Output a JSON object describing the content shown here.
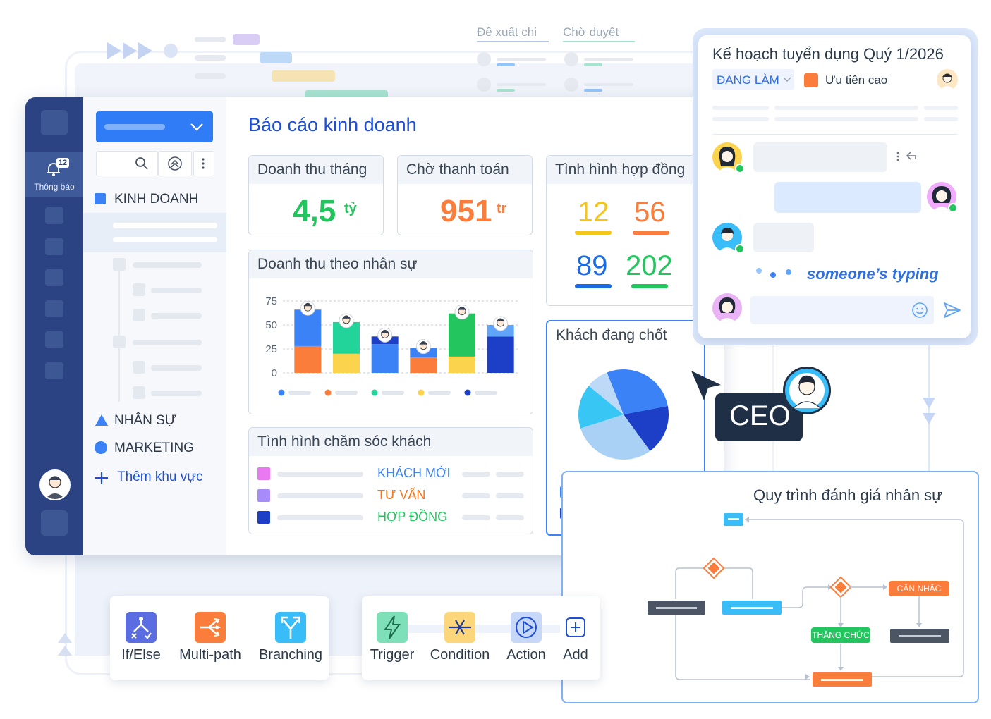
{
  "main": {
    "title": "Báo cáo kinh doanh",
    "kpis": {
      "revenue_month": {
        "label": "Doanh thu tháng",
        "value": "4,5",
        "unit": "tỷ"
      },
      "pending_payment": {
        "label": "Chờ thanh toán",
        "value": "951",
        "unit": "tr"
      },
      "contracts": {
        "label": "Tình hình hợp đồng",
        "values": [
          "12",
          "56",
          "89",
          "202"
        ]
      }
    },
    "revenue_by_staff": {
      "label": "Doanh thu theo nhân sự"
    },
    "customer_care": {
      "label": "Tình hình chăm sóc khách",
      "rows": [
        {
          "label": "KHÁCH MỚI",
          "swatch": "#e879f0",
          "text_color": "#3b82f6"
        },
        {
          "label": "TƯ VẤN",
          "swatch": "#a78bfa",
          "text_color": "#f97316"
        },
        {
          "label": "HỢP ĐỒNG",
          "swatch": "#1d3fc7",
          "text_color": "#22c55e"
        }
      ]
    },
    "closing_customers": {
      "label": "Khách đang chốt"
    }
  },
  "sidebar": {
    "notifications": {
      "label": "Thông báo",
      "badge": "12"
    },
    "sections": [
      {
        "label": "KINH DOANH",
        "color": "#3b82f6",
        "shape": "square"
      },
      {
        "label": "NHÂN SỰ",
        "color": "#3b82f6",
        "shape": "triangle"
      },
      {
        "label": "MARKETING",
        "color": "#3b82f6",
        "shape": "circle"
      }
    ],
    "add_area": "Thêm khu vực"
  },
  "top_tabs": [
    "Đề xuất chi",
    "Chờ duyệt"
  ],
  "task": {
    "title": "Kế hoạch tuyển dụng Quý 1/2026",
    "status": "ĐANG LÀM",
    "priority": "Ưu tiên cao",
    "typing": "someone’s typing"
  },
  "ceo_label": "CEO",
  "workflow": {
    "title": "Quy trình đánh giá nhân sự",
    "nodes": {
      "consider": "CÂN NHẮC",
      "promote": "THĂNG CHỨC"
    }
  },
  "toolbar_left": [
    {
      "label": "If/Else",
      "icon": "if-else-icon",
      "color": "#5b6ee1"
    },
    {
      "label": "Multi-path",
      "icon": "multi-path-icon",
      "color": "#fb7d3c"
    },
    {
      "label": "Branching",
      "icon": "branching-icon",
      "color": "#38bdf8"
    }
  ],
  "toolbar_right": [
    {
      "label": "Trigger",
      "icon": "lightning-icon",
      "color": "#7ee0b8"
    },
    {
      "label": "Condition",
      "icon": "condition-icon",
      "color": "#fcd67a"
    },
    {
      "label": "Action",
      "icon": "play-icon",
      "color": "#c7d7f7"
    },
    {
      "label": "Add",
      "icon": "plus-icon",
      "color": "#ffffff"
    }
  ],
  "chart_data": {
    "type": "bar",
    "stacked": true,
    "categories": [
      "",
      "",
      "",
      "",
      "",
      ""
    ],
    "ylim": [
      0,
      75
    ],
    "yticks": [
      0,
      25,
      50,
      75
    ],
    "series": [
      {
        "values": [
          28,
          0,
          0,
          16,
          0,
          0
        ],
        "color": "#fb7d3c"
      },
      {
        "values": [
          0,
          20,
          0,
          0,
          17,
          0
        ],
        "color": "#fcd34d"
      },
      {
        "values": [
          0,
          33,
          0,
          0,
          0,
          0
        ],
        "color": "#22d39a"
      },
      {
        "values": [
          38,
          0,
          30,
          10,
          0,
          0
        ],
        "color": "#3b82f6"
      },
      {
        "values": [
          0,
          0,
          8,
          0,
          0,
          38
        ],
        "color": "#1d3fc7"
      },
      {
        "values": [
          0,
          0,
          0,
          0,
          45,
          0
        ],
        "color": "#22c55e"
      },
      {
        "values": [
          0,
          0,
          0,
          0,
          0,
          12
        ],
        "color": "#60a5fa"
      }
    ],
    "grid": true
  },
  "pie_data": {
    "type": "pie",
    "values": [
      28,
      18,
      30,
      16,
      8
    ],
    "colors": [
      "#3b82f6",
      "#1d3fc7",
      "#a9d1f5",
      "#38c7f5",
      "#bcd9f7"
    ]
  }
}
